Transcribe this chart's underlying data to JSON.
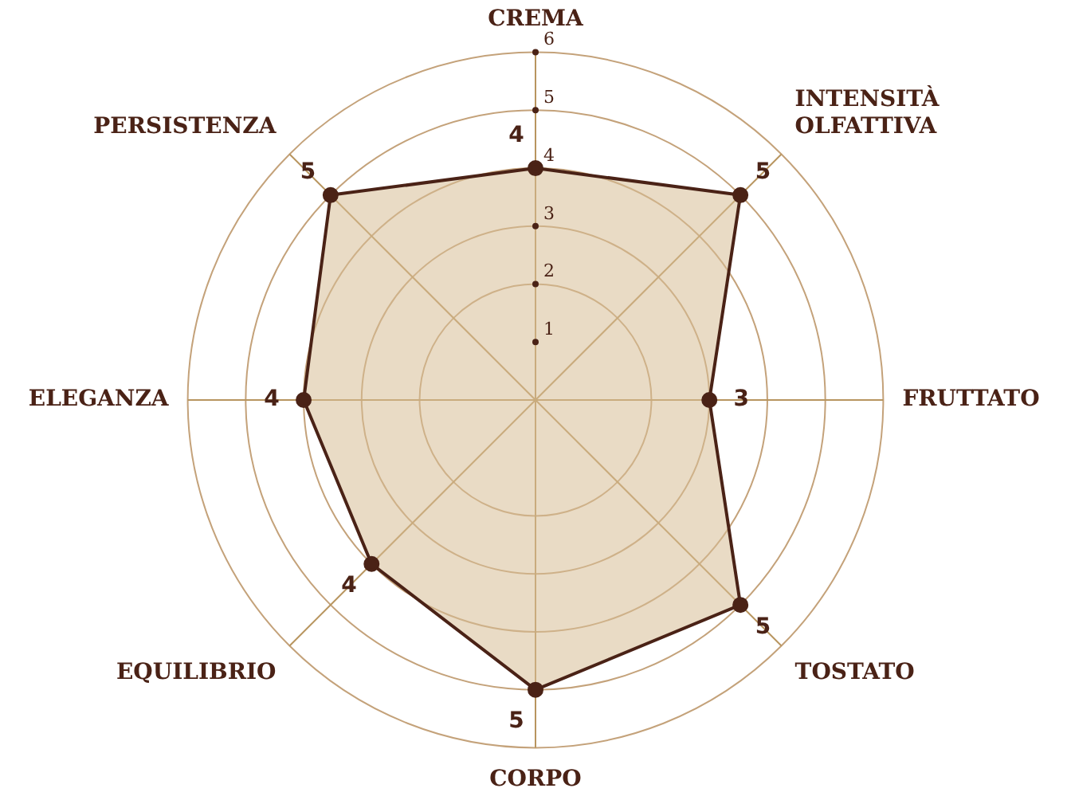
{
  "chart_data": {
    "type": "radar",
    "categories": [
      "CREMA",
      "INTENSITÀ OLFATTIVA",
      "FRUTTATO",
      "TOSTATO",
      "CORPO",
      "EQUILIBRIO",
      "ELEGANZA",
      "PERSISTENZA"
    ],
    "series": [
      {
        "color": "#4a2216",
        "values": [
          4,
          5,
          3,
          5,
          5,
          4,
          4,
          5
        ]
      }
    ],
    "ylim": [
      0,
      6
    ],
    "yticks": [
      1,
      2,
      3,
      4,
      5,
      6
    ],
    "grid": true,
    "marker": "circle",
    "line_style": "solid",
    "data_labels": true,
    "legend": false
  }
}
